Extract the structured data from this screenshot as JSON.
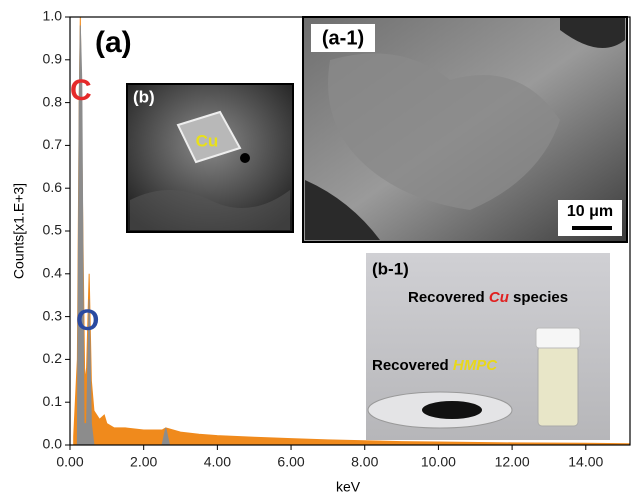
{
  "chart_data": {
    "type": "area",
    "xlabel": "keV",
    "ylabel": "Counts[x1.E+3]",
    "xlim": [
      0,
      15.2
    ],
    "ylim": [
      0,
      1
    ],
    "xticks": [
      {
        "value": 0,
        "label": "0.00"
      },
      {
        "value": 2,
        "label": "2.00"
      },
      {
        "value": 4,
        "label": "4.00"
      },
      {
        "value": 6,
        "label": "6.00"
      },
      {
        "value": 8,
        "label": "8.00"
      },
      {
        "value": 10,
        "label": "10.00"
      },
      {
        "value": 12,
        "label": "12.00"
      },
      {
        "value": 14,
        "label": "14.00"
      }
    ],
    "yticks": [
      {
        "value": 0,
        "label": "0.0"
      },
      0.1,
      0.2,
      0.3,
      0.4,
      0.5,
      0.6,
      0.7,
      0.8,
      0.9,
      {
        "value": 1,
        "label": "1.0"
      }
    ],
    "annotations": [
      "(a)",
      "C",
      "O"
    ],
    "series": [
      {
        "color": "#f08a1c",
        "x": [
          0.1,
          0.2,
          0.25,
          0.28,
          0.32,
          0.4,
          0.45,
          0.52,
          0.58,
          0.65,
          0.8,
          0.93,
          1.0,
          1.2,
          1.5,
          2.0,
          2.5,
          2.6,
          3.0,
          3.5,
          4.0,
          5.0,
          6.0,
          7.0,
          8.0,
          9.0,
          10.0,
          12.0,
          14.0,
          15.2
        ],
        "values": [
          0.02,
          0.2,
          0.8,
          1.0,
          0.7,
          0.15,
          0.18,
          0.4,
          0.15,
          0.08,
          0.06,
          0.07,
          0.05,
          0.04,
          0.04,
          0.035,
          0.035,
          0.04,
          0.03,
          0.025,
          0.022,
          0.018,
          0.015,
          0.012,
          0.01,
          0.008,
          0.007,
          0.005,
          0.004,
          0.003
        ]
      },
      {
        "color": "#8c8c8c",
        "x": [
          0.2,
          0.25,
          0.28,
          0.32,
          0.38,
          0.45,
          0.52,
          0.58,
          0.65,
          1.5,
          2.5,
          2.6,
          2.7
        ],
        "values": [
          0,
          0.8,
          0.98,
          0.85,
          0.05,
          0.05,
          0.34,
          0.05,
          0,
          null,
          0,
          0.04,
          0
        ]
      }
    ]
  },
  "insets": {
    "b": {
      "label": "(b)",
      "text": "Cu"
    },
    "a1": {
      "label": "(a-1)",
      "scale": "10 μm"
    },
    "b1": {
      "label": "(b-1)",
      "cu_parts": [
        "Recovered ",
        "Cu",
        " species"
      ],
      "hmpc_parts": [
        "Recovered ",
        "HMPC"
      ]
    }
  }
}
